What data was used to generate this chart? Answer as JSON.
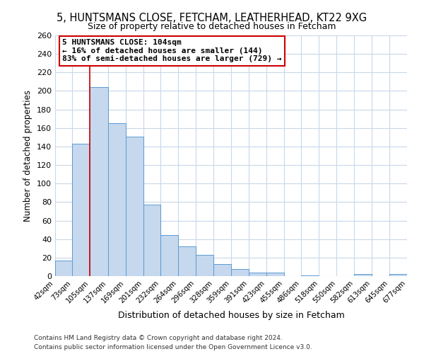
{
  "title": "5, HUNTSMANS CLOSE, FETCHAM, LEATHERHEAD, KT22 9XG",
  "subtitle": "Size of property relative to detached houses in Fetcham",
  "xlabel": "Distribution of detached houses by size in Fetcham",
  "ylabel": "Number of detached properties",
  "bar_edges": [
    42,
    73,
    105,
    137,
    169,
    201,
    232,
    264,
    296,
    328,
    359,
    391,
    423,
    455,
    486,
    518,
    550,
    582,
    613,
    645,
    677
  ],
  "bar_heights": [
    17,
    143,
    204,
    165,
    151,
    77,
    44,
    32,
    23,
    13,
    8,
    4,
    4,
    0,
    1,
    0,
    0,
    2,
    0,
    2
  ],
  "bar_color": "#c5d8ed",
  "bar_edge_color": "#5b9bd5",
  "vline_x": 104,
  "vline_color": "#cc0000",
  "ylim": [
    0,
    260
  ],
  "yticks": [
    0,
    20,
    40,
    60,
    80,
    100,
    120,
    140,
    160,
    180,
    200,
    220,
    240,
    260
  ],
  "annotation_title": "5 HUNTSMANS CLOSE: 104sqm",
  "annotation_line1": "← 16% of detached houses are smaller (144)",
  "annotation_line2": "83% of semi-detached houses are larger (729) →",
  "annotation_box_color": "#ffffff",
  "annotation_box_edge": "#cc0000",
  "footer1": "Contains HM Land Registry data © Crown copyright and database right 2024.",
  "footer2": "Contains public sector information licensed under the Open Government Licence v3.0.",
  "bg_color": "#ffffff",
  "grid_color": "#c8d8e8",
  "tick_labels": [
    "42sqm",
    "73sqm",
    "105sqm",
    "137sqm",
    "169sqm",
    "201sqm",
    "232sqm",
    "264sqm",
    "296sqm",
    "328sqm",
    "359sqm",
    "391sqm",
    "423sqm",
    "455sqm",
    "486sqm",
    "518sqm",
    "550sqm",
    "582sqm",
    "613sqm",
    "645sqm",
    "677sqm"
  ]
}
